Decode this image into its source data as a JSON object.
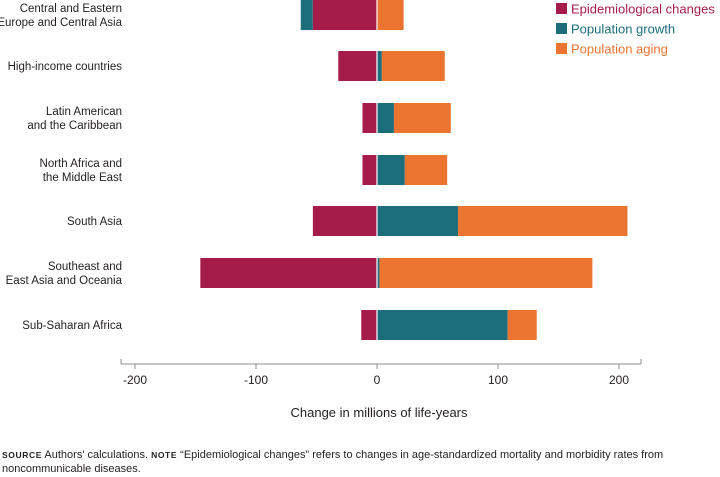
{
  "chart_data": {
    "type": "bar",
    "orientation": "horizontal",
    "stacked": true,
    "categories": [
      [
        "Central and Eastern",
        "Europe and Central Asia"
      ],
      [
        "High-income countries"
      ],
      [
        "Latin American",
        "and the Caribbean"
      ],
      [
        "North Africa and",
        "the Middle East"
      ],
      [
        "South Asia"
      ],
      [
        "Southeast and",
        "East Asia and Oceania"
      ],
      [
        "Sub-Saharan Africa"
      ]
    ],
    "series": [
      {
        "name": "Epidemiological changes",
        "color": "#a51c4b",
        "values": [
          -53,
          -32,
          -12,
          -12,
          -53,
          -146,
          -13
        ]
      },
      {
        "name": "Population growth",
        "color": "#1c6e7d",
        "values": [
          -10,
          4,
          14,
          23,
          67,
          2,
          108
        ]
      },
      {
        "name": "Population aging",
        "color": "#ec7431",
        "values": [
          22,
          52,
          47,
          35,
          140,
          176,
          24
        ]
      }
    ],
    "xlabel": "Change in millions of life-years",
    "xlim": [
      -215,
      220
    ],
    "xticks": [
      -200,
      -100,
      0,
      100,
      200
    ],
    "xtick_labels": [
      "-200",
      "-100",
      "0",
      "100",
      "200"
    ],
    "legend_position": "top-right"
  },
  "footnote": {
    "source_label": "SOURCE",
    "source_text": "Authors' calculations.",
    "note_label": "NOTE",
    "note_text": "“Epidemiological changes” refers to changes in age-standardized mortality and morbidity rates from noncommunicable diseases."
  }
}
